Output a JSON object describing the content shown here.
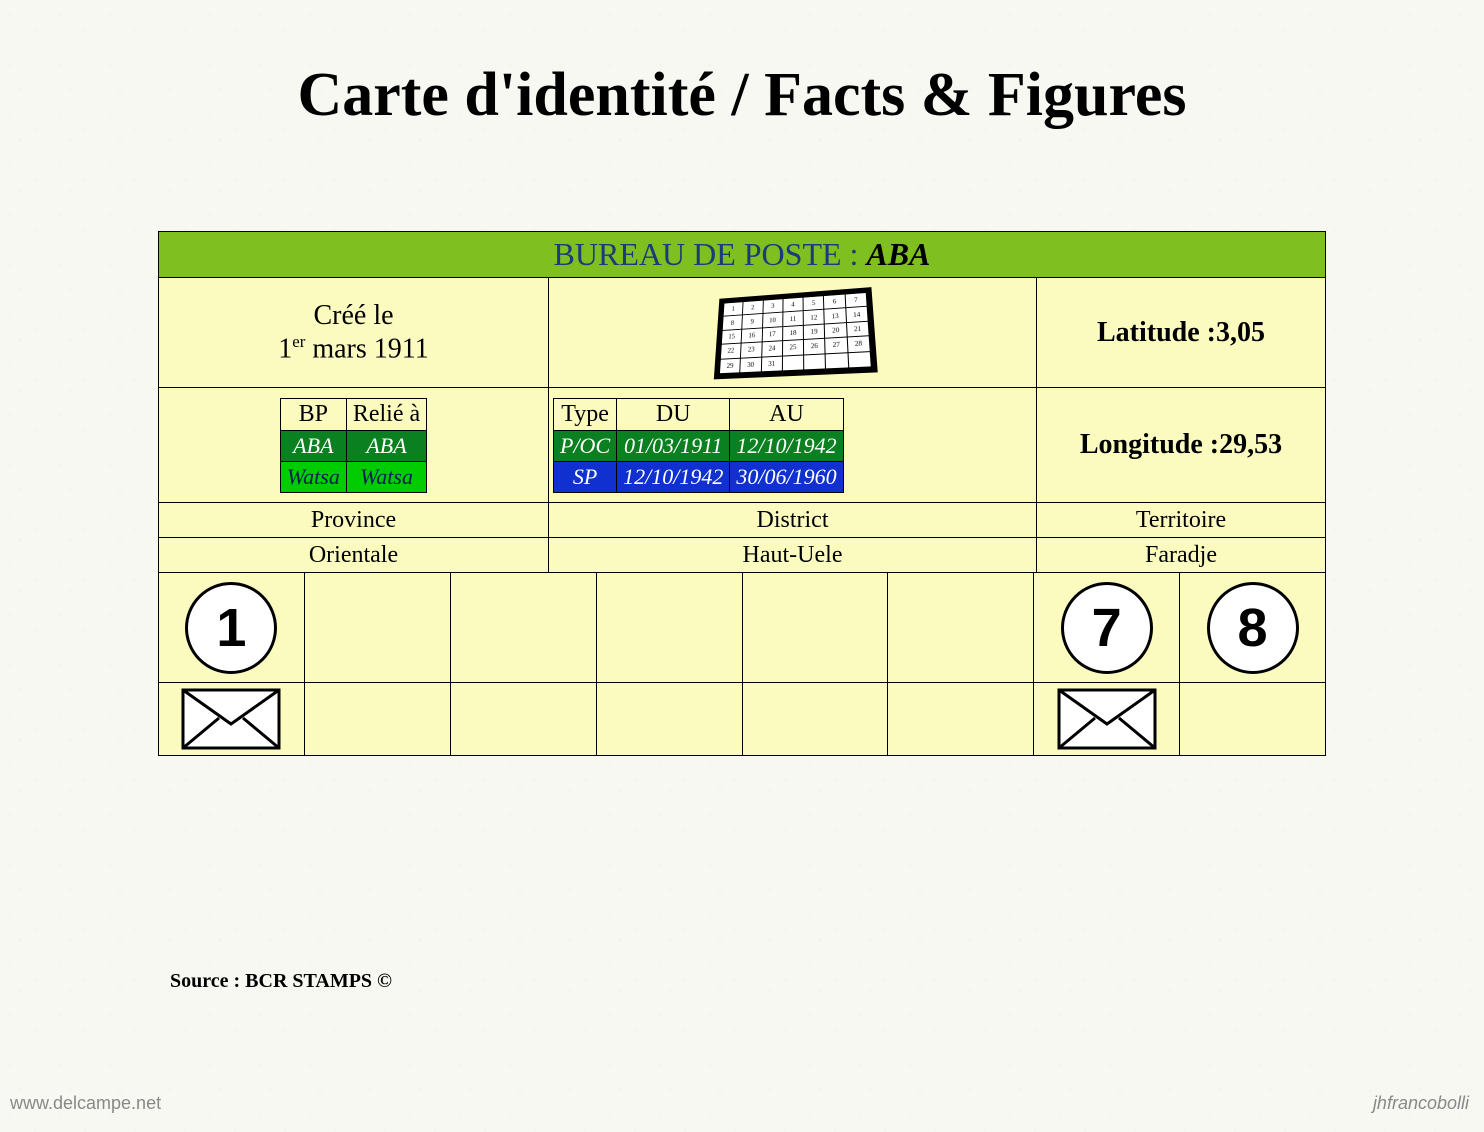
{
  "title": "Carte d'identité / Facts & Figures",
  "header": {
    "label": "BUREAU DE POSTE : ",
    "name": "ABA"
  },
  "created": {
    "label": "Créé le",
    "value_prefix": "1",
    "value_sup": "er",
    "value_suffix": " mars 1911"
  },
  "latitude": {
    "label": "Latitude : ",
    "value": "3,05"
  },
  "longitude": {
    "label": "Longitude : ",
    "value": "29,53"
  },
  "bp_table": {
    "headers": [
      "BP",
      "Relié à"
    ],
    "rows": [
      {
        "cols": [
          "ABA",
          "ABA"
        ],
        "bg": "#0a8020",
        "fg": "#ffffff",
        "italic": true
      },
      {
        "cols": [
          "Watsa",
          "Watsa"
        ],
        "bg": "#00cc00",
        "fg": "#002050",
        "italic": true
      }
    ]
  },
  "type_table": {
    "headers": [
      "Type",
      "DU",
      "AU"
    ],
    "rows": [
      {
        "cols": [
          "P/OC",
          "01/03/1911",
          "12/10/1942"
        ],
        "bg": "#0a8020",
        "fg": "#ffffff"
      },
      {
        "cols": [
          "SP",
          "12/10/1942",
          "30/06/1960"
        ],
        "bg": "#1030d0",
        "fg": "#ffffff"
      }
    ]
  },
  "admin": {
    "labels": [
      "Province",
      "District",
      "Territoire"
    ],
    "values": [
      "Orientale",
      "Haut-Uele",
      "Faradje"
    ]
  },
  "circles": [
    "1",
    "",
    "",
    "",
    "",
    "",
    "7",
    "8"
  ],
  "envelopes": [
    true,
    false,
    false,
    false,
    false,
    false,
    true,
    false
  ],
  "source": "Source : BCR STAMPS ©",
  "watermark_left": "www.delcampe.net",
  "watermark_right": "jhfrancobolli",
  "colors": {
    "card_bg": "#fbfbc0",
    "header_bg": "#7fbf1f",
    "header_text": "#1a3d7a",
    "green_row": "#0a8020",
    "blue_row": "#1030d0",
    "bright_green": "#00cc00"
  }
}
